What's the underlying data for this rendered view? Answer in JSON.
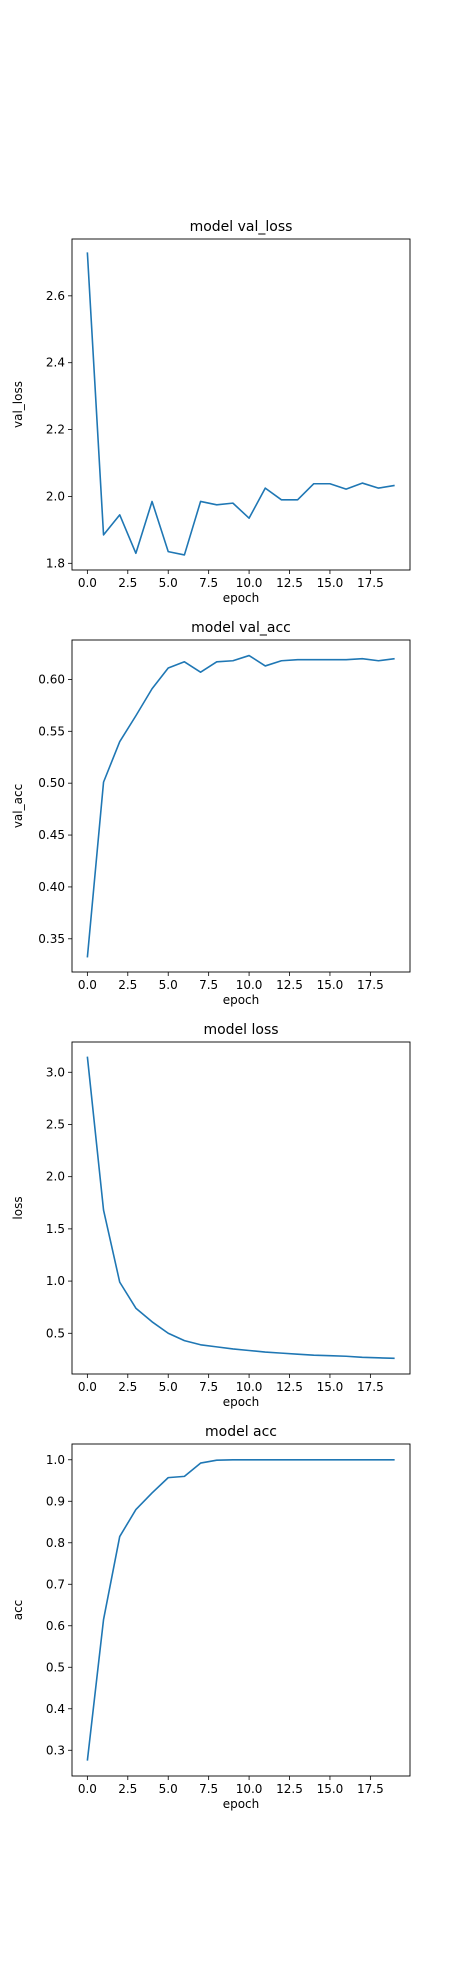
{
  "chart_data": [
    {
      "type": "line",
      "title": "model val_loss",
      "xlabel": "epoch",
      "ylabel": "val_loss",
      "xlim": [
        -0.95,
        19.95
      ],
      "ylim": [
        1.78,
        2.77
      ],
      "xticks": [
        0.0,
        2.5,
        5.0,
        7.5,
        10.0,
        12.5,
        15.0,
        17.5
      ],
      "xtick_labels": [
        "0.0",
        "2.5",
        "5.0",
        "7.5",
        "10.0",
        "12.5",
        "15.0",
        "17.5"
      ],
      "yticks": [
        1.8,
        2.0,
        2.2,
        2.4,
        2.6
      ],
      "ytick_labels": [
        "1.8",
        "2.0",
        "2.2",
        "2.4",
        "2.6"
      ],
      "grid": false,
      "color": "#1f77b4",
      "x": [
        0,
        1,
        2,
        3,
        4,
        5,
        6,
        7,
        8,
        9,
        10,
        11,
        12,
        13,
        14,
        15,
        16,
        17,
        18,
        19
      ],
      "y": [
        2.73,
        1.885,
        1.945,
        1.83,
        1.985,
        1.835,
        1.825,
        1.985,
        1.975,
        1.98,
        1.935,
        2.025,
        1.99,
        1.99,
        2.038,
        2.038,
        2.022,
        2.04,
        2.025,
        2.033
      ]
    },
    {
      "type": "line",
      "title": "model val_acc",
      "xlabel": "epoch",
      "ylabel": "val_acc",
      "xlim": [
        -0.95,
        19.95
      ],
      "ylim": [
        0.318,
        0.638
      ],
      "xticks": [
        0.0,
        2.5,
        5.0,
        7.5,
        10.0,
        12.5,
        15.0,
        17.5
      ],
      "xtick_labels": [
        "0.0",
        "2.5",
        "5.0",
        "7.5",
        "10.0",
        "12.5",
        "15.0",
        "17.5"
      ],
      "yticks": [
        0.35,
        0.4,
        0.45,
        0.5,
        0.55,
        0.6
      ],
      "ytick_labels": [
        "0.35",
        "0.40",
        "0.45",
        "0.50",
        "0.55",
        "0.60"
      ],
      "grid": false,
      "color": "#1f77b4",
      "x": [
        0,
        1,
        2,
        3,
        4,
        5,
        6,
        7,
        8,
        9,
        10,
        11,
        12,
        13,
        14,
        15,
        16,
        17,
        18,
        19
      ],
      "y": [
        0.332,
        0.501,
        0.54,
        0.565,
        0.591,
        0.611,
        0.617,
        0.607,
        0.617,
        0.618,
        0.623,
        0.613,
        0.618,
        0.619,
        0.619,
        0.619,
        0.619,
        0.62,
        0.618,
        0.62
      ]
    },
    {
      "type": "line",
      "title": "model loss",
      "xlabel": "epoch",
      "ylabel": "loss",
      "xlim": [
        -0.95,
        19.95
      ],
      "ylim": [
        0.11,
        3.29
      ],
      "xticks": [
        0.0,
        2.5,
        5.0,
        7.5,
        10.0,
        12.5,
        15.0,
        17.5
      ],
      "xtick_labels": [
        "0.0",
        "2.5",
        "5.0",
        "7.5",
        "10.0",
        "12.5",
        "15.0",
        "17.5"
      ],
      "yticks": [
        0.5,
        1.0,
        1.5,
        2.0,
        2.5,
        3.0
      ],
      "ytick_labels": [
        "0.5",
        "1.0",
        "1.5",
        "2.0",
        "2.5",
        "3.0"
      ],
      "grid": false,
      "color": "#1f77b4",
      "x": [
        0,
        1,
        2,
        3,
        4,
        5,
        6,
        7,
        8,
        9,
        10,
        11,
        12,
        13,
        14,
        15,
        16,
        17,
        18,
        19
      ],
      "y": [
        3.15,
        1.68,
        0.99,
        0.74,
        0.61,
        0.5,
        0.43,
        0.39,
        0.37,
        0.35,
        0.335,
        0.32,
        0.31,
        0.3,
        0.29,
        0.285,
        0.28,
        0.27,
        0.265,
        0.26
      ]
    },
    {
      "type": "line",
      "title": "model acc",
      "xlabel": "epoch",
      "ylabel": "acc",
      "xlim": [
        -0.95,
        19.95
      ],
      "ylim": [
        0.238,
        1.038
      ],
      "xticks": [
        0.0,
        2.5,
        5.0,
        7.5,
        10.0,
        12.5,
        15.0,
        17.5
      ],
      "xtick_labels": [
        "0.0",
        "2.5",
        "5.0",
        "7.5",
        "10.0",
        "12.5",
        "15.0",
        "17.5"
      ],
      "yticks": [
        0.3,
        0.4,
        0.5,
        0.6,
        0.7,
        0.8,
        0.9,
        1.0
      ],
      "ytick_labels": [
        "0.3",
        "0.4",
        "0.5",
        "0.6",
        "0.7",
        "0.8",
        "0.9",
        "1.0"
      ],
      "grid": false,
      "color": "#1f77b4",
      "x": [
        0,
        1,
        2,
        3,
        4,
        5,
        6,
        7,
        8,
        9,
        10,
        11,
        12,
        13,
        14,
        15,
        16,
        17,
        18,
        19
      ],
      "y": [
        0.275,
        0.615,
        0.815,
        0.88,
        0.92,
        0.957,
        0.96,
        0.992,
        0.999,
        1.0,
        1.0,
        1.0,
        1.0,
        1.0,
        1.0,
        1.0,
        1.0,
        1.0,
        1.0,
        1.0
      ]
    }
  ]
}
